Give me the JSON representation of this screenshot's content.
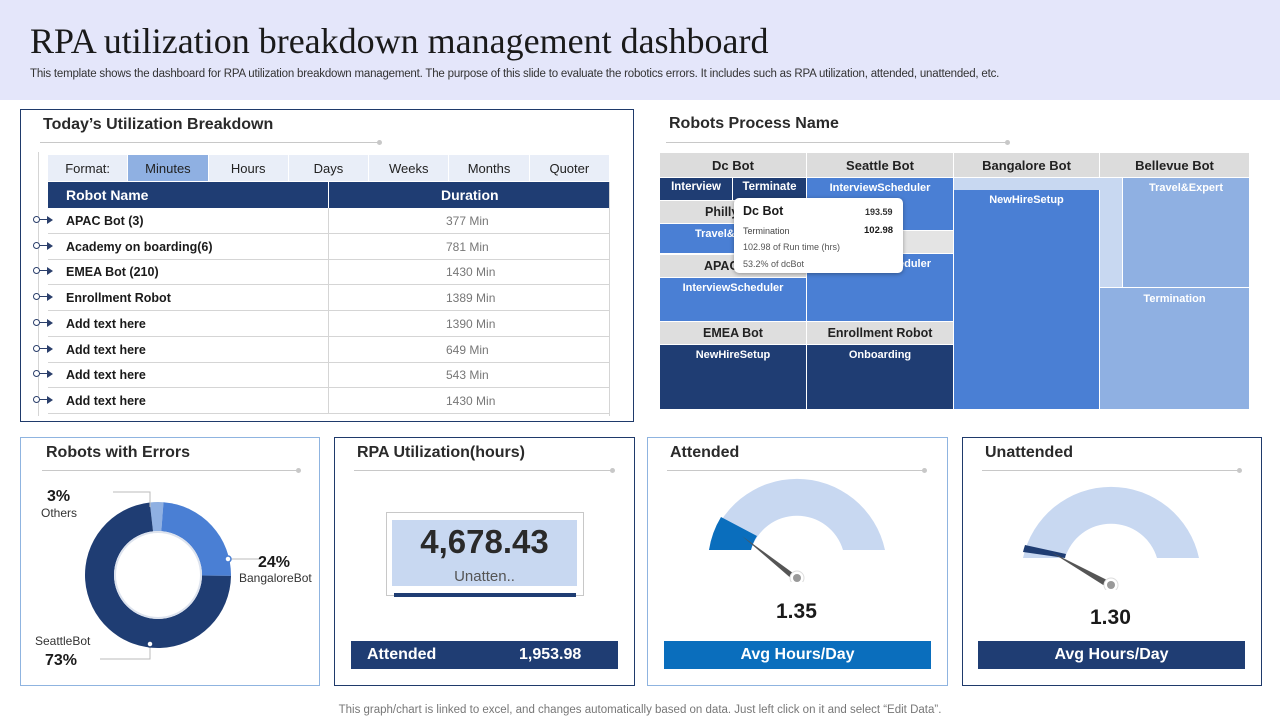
{
  "header": {
    "title": "RPA utilization breakdown management dashboard",
    "subtitle": "This template shows the dashboard for RPA utilization breakdown management. The purpose of this slide to evaluate the robotics errors. It includes such as RPA utilization, attended, unattended, etc."
  },
  "utilization": {
    "title": "Today’s Utilization Breakdown",
    "format_label": "Format:",
    "formats": [
      "Minutes",
      "Hours",
      "Days",
      "Weeks",
      "Months",
      "Quoter"
    ],
    "active_format": "Minutes",
    "columns": [
      "Robot Name",
      "Duration"
    ],
    "rows": [
      {
        "name": "APAC Bot (3)",
        "duration": "377 Min"
      },
      {
        "name": "Academy on boarding(6)",
        "duration": "781 Min"
      },
      {
        "name": "EMEA Bot (210)",
        "duration": "1430 Min"
      },
      {
        "name": "Enrollment Robot",
        "duration": "1389 Min"
      },
      {
        "name": "Add text here",
        "duration": "1390 Min"
      },
      {
        "name": "Add text here",
        "duration": "649 Min"
      },
      {
        "name": "Add text here",
        "duration": "543 Min"
      },
      {
        "name": "Add text here",
        "duration": "1430 Min"
      }
    ]
  },
  "process": {
    "title": "Robots Process Name",
    "headers": [
      "Dc Bot",
      "Seattle Bot",
      "Bangalore Bot",
      "Bellevue Bot"
    ],
    "cells": {
      "interview": "Interview",
      "terminate": "Terminate",
      "philly": "Philly",
      "travel": "Travel&",
      "apac": "APAC",
      "dc_interview_scheduler": "InterviewScheduler",
      "emea": "EMEA Bot",
      "emea_newhire": "NewHireSetup",
      "seattle_interview_scheduler": "InterviewScheduler",
      "seattle_scheduler_partial": "eduler",
      "enrollment": "Enrollment Robot",
      "onboarding": "Onboarding",
      "bangalore_newhire": "NewHireSetup",
      "bellevue_travel": "Travel&Expert",
      "bellevue_termination": "Termination"
    },
    "tooltip": {
      "title": "Dc Bot",
      "title_value": "193.59",
      "item": "Termination",
      "item_value": "102.98",
      "runtime": "102.98  of Run time (hrs)",
      "share": "53.2%  of dcBot"
    },
    "colors": {
      "dark": "#1f3d73",
      "mid": "#4a7fd4",
      "light": "#8fb0e2",
      "pale": "#c8d8f1"
    }
  },
  "errors": {
    "title": "Robots with Errors",
    "segments": [
      {
        "name": "Others",
        "pct": "3%",
        "value": 3,
        "color": "#8fb0e2"
      },
      {
        "name": "BangaloreBot",
        "pct": "24%",
        "value": 24,
        "color": "#4a7fd4"
      },
      {
        "name": "SeattleBot",
        "pct": "73%",
        "value": 73,
        "color": "#1f3d73"
      }
    ]
  },
  "rpa": {
    "title": "RPA Utilization(hours)",
    "value": "4,678.43",
    "sub": "Unatten..",
    "attended_label": "Attended",
    "attended_value": "1,953.98"
  },
  "attended": {
    "title": "Attended",
    "value": "1.35",
    "button": "Avg Hours/Day",
    "accent": "#0a6ebd"
  },
  "unattended": {
    "title": "Unattended",
    "value": "1.30",
    "button": "Avg Hours/Day",
    "accent": "#1f3d73"
  },
  "footer": "This graph/chart is linked to excel, and changes automatically based on data. Just left click on it and select “Edit Data”."
}
